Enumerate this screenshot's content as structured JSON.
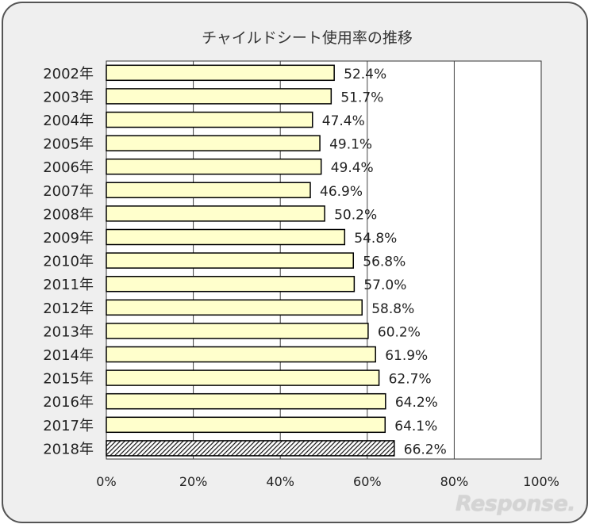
{
  "chart_data": {
    "type": "bar",
    "orientation": "horizontal",
    "title": "チャイルドシート使用率の推移",
    "categories": [
      "2002年",
      "2003年",
      "2004年",
      "2005年",
      "2006年",
      "2007年",
      "2008年",
      "2009年",
      "2010年",
      "2011年",
      "2012年",
      "2013年",
      "2014年",
      "2015年",
      "2016年",
      "2017年",
      "2018年"
    ],
    "values": [
      52.4,
      51.7,
      47.4,
      49.1,
      49.4,
      46.9,
      50.2,
      54.8,
      56.8,
      57.0,
      58.8,
      60.2,
      61.9,
      62.7,
      64.2,
      64.1,
      66.2
    ],
    "value_labels": [
      "52.4%",
      "51.7%",
      "47.4%",
      "49.1%",
      "49.4%",
      "46.9%",
      "50.2%",
      "54.8%",
      "56.8%",
      "57.0%",
      "58.8%",
      "60.2%",
      "61.9%",
      "62.7%",
      "64.2%",
      "64.1%",
      "66.2%"
    ],
    "xlim": [
      0,
      100
    ],
    "x_ticks": [
      "0%",
      "20%",
      "40%",
      "60%",
      "80%",
      "100%"
    ],
    "gridlines": "vertical",
    "bar_color": "#ffffcc",
    "highlight_category": "2018年",
    "highlight_pattern": "diagonal hatch",
    "plot_background": "#ffffff"
  },
  "watermark": "Response."
}
